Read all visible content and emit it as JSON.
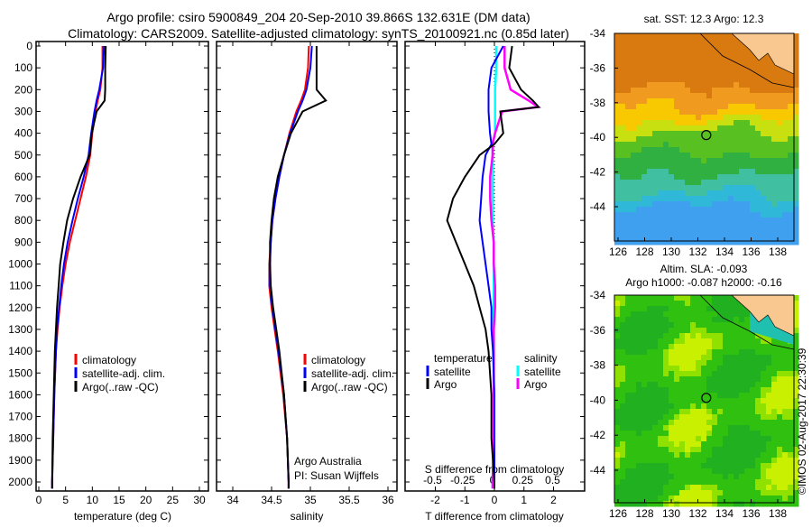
{
  "title_line1": "Argo profile: csiro 5900849_204 20-Sep-2010 39.866S 132.631E (DM data)",
  "title_line2": "Climatology: CARS2009. Satellite-adjusted climatology: synTS_20100921.nc (0.85d later)",
  "credit": "©IMOS 02-Aug-2017 22:30:39",
  "colors": {
    "climatology": "#ff0000",
    "satellite": "#0000ff",
    "argo": "#000000",
    "sal_satellite": "#00ffff",
    "sal_argo": "#ff00ff"
  },
  "chart_data": [
    {
      "type": "line",
      "xlabel": "temperature (deg C)",
      "ylabel": "",
      "xlim": [
        -0.5,
        31
      ],
      "ylim": [
        2050,
        0
      ],
      "xticks": [
        "0",
        "5",
        "10",
        "15",
        "20",
        "25",
        "30"
      ],
      "yticks": [
        "0",
        "100",
        "200",
        "300",
        "400",
        "500",
        "600",
        "700",
        "800",
        "900",
        "1000",
        "1100",
        "1200",
        "1300",
        "1400",
        "1500",
        "1600",
        "1700",
        "1800",
        "1900",
        "2000"
      ],
      "legend": [
        "climatology",
        "satellite-adj. clim.",
        "Argo(..raw -QC)"
      ],
      "depth": [
        0,
        100,
        200,
        250,
        300,
        400,
        500,
        600,
        700,
        800,
        900,
        1000,
        1100,
        1200,
        1300,
        1400,
        1600,
        1800,
        2000,
        2050
      ],
      "series": [
        {
          "name": "climatology",
          "values": [
            11.9,
            11.9,
            11.5,
            11.0,
            10.6,
            10.0,
            9.6,
            8.8,
            7.8,
            6.8,
            5.8,
            5.0,
            4.4,
            3.9,
            3.5,
            3.2,
            2.9,
            2.7,
            2.5,
            2.5
          ]
        },
        {
          "name": "satellite-adj. clim.",
          "values": [
            12.2,
            12.0,
            11.3,
            10.8,
            10.4,
            9.8,
            9.3,
            8.4,
            7.3,
            6.3,
            5.4,
            4.7,
            4.2,
            3.8,
            3.4,
            3.2,
            2.9,
            2.7,
            2.5,
            2.5
          ]
        },
        {
          "name": "Argo(..raw -QC)",
          "values": [
            12.5,
            12.4,
            12.4,
            12.3,
            10.8,
            9.9,
            9.5,
            7.8,
            6.4,
            5.3,
            4.6,
            4.0,
            3.7,
            3.4,
            3.2,
            3.0,
            2.8,
            2.6,
            2.5,
            2.5
          ]
        }
      ]
    },
    {
      "type": "line",
      "xlabel": "salinity",
      "xlim": [
        33.8,
        36.1
      ],
      "ylim": [
        2050,
        0
      ],
      "xticks": [
        "34",
        "34.5",
        "35",
        "35.5",
        "36"
      ],
      "legend": [
        "climatology",
        "satellite-adj. clim.",
        "Argo(..raw -QC)"
      ],
      "annotation": [
        "Argo Australia",
        "PI: Susan Wijffels"
      ],
      "depth": [
        0,
        100,
        200,
        250,
        300,
        400,
        500,
        600,
        700,
        800,
        900,
        1000,
        1100,
        1200,
        1300,
        1400,
        1600,
        1800,
        2000,
        2050
      ],
      "series": [
        {
          "name": "climatology",
          "values": [
            34.98,
            34.97,
            34.93,
            34.88,
            34.82,
            34.73,
            34.66,
            34.6,
            34.55,
            34.51,
            34.49,
            34.47,
            34.47,
            34.5,
            34.54,
            34.58,
            34.65,
            34.7,
            34.72,
            34.72
          ]
        },
        {
          "name": "satellite-adj. clim.",
          "values": [
            35.02,
            35.0,
            34.95,
            34.9,
            34.84,
            34.74,
            34.66,
            34.6,
            34.55,
            34.51,
            34.49,
            34.48,
            34.48,
            34.51,
            34.55,
            34.59,
            34.66,
            34.7,
            34.72,
            34.72
          ]
        },
        {
          "name": "Argo(..raw -QC)",
          "values": [
            35.08,
            35.08,
            35.08,
            35.2,
            34.9,
            34.75,
            34.66,
            34.58,
            34.53,
            34.5,
            34.48,
            34.48,
            34.49,
            34.52,
            34.56,
            34.6,
            34.66,
            34.7,
            34.72,
            34.72
          ]
        }
      ]
    },
    {
      "type": "line",
      "xlabel": "T difference from climatology",
      "xlabel2": "S difference from climatology",
      "xlim": [
        -2.6,
        3.1
      ],
      "xticks": [
        "-2",
        "-1",
        "0",
        "1",
        "2"
      ],
      "xticks2": [
        "-0.5",
        "-0.25",
        "0",
        "0.25",
        "0.5"
      ],
      "ylim": [
        2050,
        0
      ],
      "legend_t_title": "temperature",
      "legend_s_title": "salinity",
      "legend": [
        "satellite",
        "Argo",
        "satellite",
        "Argo"
      ],
      "depth": [
        0,
        100,
        200,
        250,
        280,
        300,
        400,
        450,
        500,
        600,
        700,
        800,
        900,
        1000,
        1100,
        1200,
        1300,
        1400,
        1600,
        1800,
        2000,
        2050
      ],
      "series": [
        {
          "name": "T satellite",
          "values": [
            0.3,
            -0.1,
            -0.2,
            -0.2,
            -0.2,
            -0.2,
            -0.15,
            -0.1,
            -0.3,
            -0.4,
            -0.45,
            -0.5,
            -0.4,
            -0.3,
            -0.2,
            -0.1,
            -0.1,
            -0.05,
            0,
            0,
            0,
            0
          ]
        },
        {
          "name": "T Argo",
          "values": [
            0.6,
            0.5,
            0.9,
            1.3,
            1.5,
            0.2,
            0.3,
            0,
            -0.5,
            -1.0,
            -1.4,
            -1.6,
            -1.3,
            -1.0,
            -0.7,
            -0.5,
            -0.3,
            -0.2,
            -0.1,
            -0.1,
            0,
            0
          ]
        },
        {
          "name": "S satellite",
          "values": [
            0.03,
            0.03,
            0.02,
            0.02,
            0.02,
            0.02,
            0.02,
            0.0,
            0.0,
            0.0,
            0.0,
            0.0,
            0.01,
            0.01,
            0.01,
            0.01,
            0.01,
            0.01,
            0.01,
            0.01,
            0.0,
            0.0
          ]
        },
        {
          "name": "S Argo",
          "values": [
            0.1,
            0.1,
            0.15,
            0.3,
            0.38,
            0.08,
            0.02,
            0.0,
            0.0,
            -0.02,
            -0.02,
            -0.01,
            0.01,
            0.01,
            0.02,
            0.02,
            0.01,
            0.01,
            0.01,
            0.01,
            0.0,
            0.0
          ]
        }
      ]
    },
    {
      "type": "heatmap",
      "title": "sat. SST: 12.3 Argo: 12.3",
      "xticks": [
        "126",
        "128",
        "130",
        "132",
        "134",
        "136",
        "138"
      ],
      "yticks": [
        "-34",
        "-36",
        "-38",
        "-40",
        "-42",
        "-44"
      ],
      "marker": [
        132.631,
        -39.866
      ]
    },
    {
      "type": "heatmap",
      "title": "Altim. SLA: -0.093",
      "subtitle": "Argo h1000: -0.087 h2000: -0.16",
      "xticks": [
        "126",
        "128",
        "130",
        "132",
        "134",
        "136",
        "138"
      ],
      "yticks": [
        "-34",
        "-36",
        "-38",
        "-40",
        "-42",
        "-44"
      ],
      "marker": [
        132.631,
        -39.866
      ]
    }
  ]
}
